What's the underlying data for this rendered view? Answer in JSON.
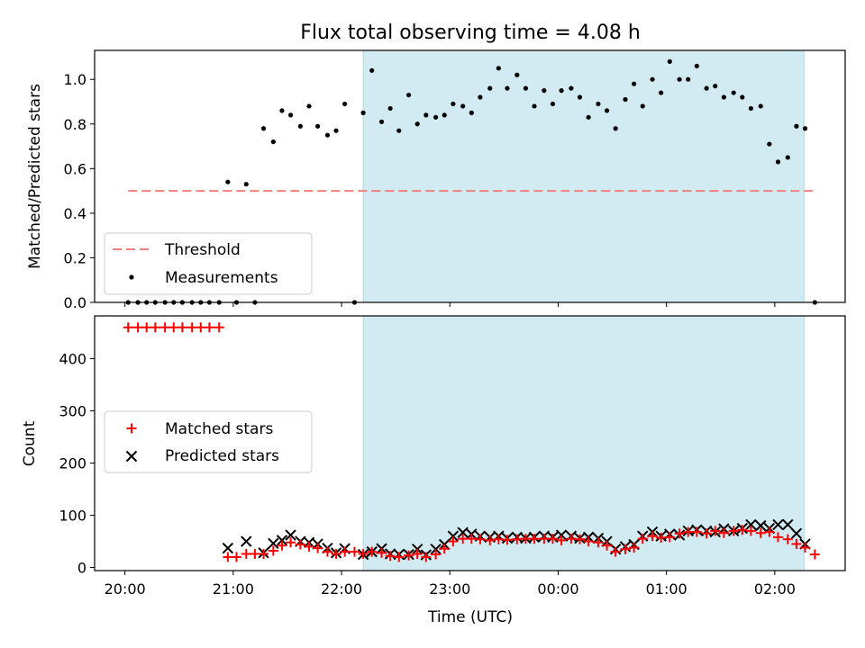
{
  "title": "Flux total observing time = 4.08 h",
  "colors": {
    "shade": "#add8e6",
    "threshold": "#f08080",
    "measurement": "#000000",
    "matched": "#ff0000",
    "predicted": "#000000"
  },
  "chart_data": [
    {
      "type": "scatter",
      "title": "Flux total observing time = 4.08 h",
      "ylabel": "Matched/Predicted stars",
      "xlim": [
        19.72,
        26.65
      ],
      "ylim": [
        0,
        1.13
      ],
      "yticks": [
        0.0,
        0.2,
        0.4,
        0.6,
        0.8,
        1.0
      ],
      "ytick_labels": [
        "0.0",
        "0.2",
        "0.4",
        "0.6",
        "0.8",
        "1.0"
      ],
      "shaded_span": [
        22.2,
        26.27
      ],
      "threshold": {
        "label": "Threshold",
        "value": 0.5,
        "x_range": [
          20.03,
          26.37
        ]
      },
      "legend": {
        "placement": "lower-left",
        "entries": [
          "Threshold",
          "Measurements"
        ]
      },
      "series": [
        {
          "name": "Measurements",
          "x": [
            20.03,
            20.12,
            20.2,
            20.28,
            20.37,
            20.45,
            20.53,
            20.62,
            20.7,
            20.78,
            20.87,
            20.95,
            21.03,
            21.12,
            21.2,
            21.28,
            21.37,
            21.45,
            21.53,
            21.62,
            21.7,
            21.78,
            21.87,
            21.95,
            22.03,
            22.12,
            22.2,
            22.28,
            22.37,
            22.45,
            22.53,
            22.62,
            22.7,
            22.78,
            22.87,
            22.95,
            23.03,
            23.12,
            23.2,
            23.28,
            23.37,
            23.45,
            23.53,
            23.62,
            23.7,
            23.78,
            23.87,
            23.95,
            24.03,
            24.12,
            24.2,
            24.28,
            24.37,
            24.45,
            24.53,
            24.62,
            24.7,
            24.78,
            24.87,
            24.95,
            25.03,
            25.12,
            25.2,
            25.28,
            25.37,
            25.45,
            25.53,
            25.62,
            25.7,
            25.78,
            25.87,
            25.95,
            26.03,
            26.12,
            26.2,
            26.28,
            26.37
          ],
          "y": [
            0,
            0,
            0,
            0,
            0,
            0,
            0,
            0,
            0,
            0,
            0,
            0.54,
            0,
            0.53,
            0,
            0.78,
            0.72,
            0.86,
            0.84,
            0.79,
            0.88,
            0.79,
            0.75,
            0.77,
            0.89,
            0,
            0.85,
            1.04,
            0.81,
            0.87,
            0.77,
            0.93,
            0.8,
            0.84,
            0.83,
            0.84,
            0.89,
            0.88,
            0.85,
            0.92,
            0.96,
            1.05,
            0.96,
            1.02,
            0.96,
            0.88,
            0.95,
            0.89,
            0.95,
            0.96,
            0.92,
            0.83,
            0.89,
            0.86,
            0.78,
            0.91,
            0.98,
            0.88,
            1.0,
            0.94,
            1.08,
            1.0,
            1.0,
            1.06,
            0.96,
            0.97,
            0.92,
            0.94,
            0.92,
            0.87,
            0.88,
            0.71,
            0.63,
            0.65,
            0.79,
            0.78,
            0
          ]
        }
      ]
    },
    {
      "type": "scatter",
      "ylabel": "Count",
      "xlabel": "Time (UTC)",
      "xlim": [
        19.72,
        26.65
      ],
      "ylim": [
        -6,
        482
      ],
      "yticks": [
        0,
        100,
        200,
        300,
        400
      ],
      "ytick_labels": [
        "0",
        "100",
        "200",
        "300",
        "400"
      ],
      "xticks": [
        20,
        21,
        22,
        23,
        24,
        25,
        26
      ],
      "xtick_labels": [
        "20:00",
        "21:00",
        "22:00",
        "23:00",
        "00:00",
        "01:00",
        "02:00"
      ],
      "shaded_span": [
        22.2,
        26.27
      ],
      "legend": {
        "placement": "center-left",
        "entries": [
          "Matched stars",
          "Predicted stars"
        ]
      },
      "series": [
        {
          "name": "Matched stars",
          "marker": "plus",
          "x": [
            20.03,
            20.12,
            20.2,
            20.28,
            20.37,
            20.45,
            20.53,
            20.62,
            20.7,
            20.78,
            20.87,
            20.95,
            21.03,
            21.12,
            21.2,
            21.28,
            21.37,
            21.45,
            21.53,
            21.62,
            21.7,
            21.78,
            21.87,
            21.95,
            22.03,
            22.12,
            22.2,
            22.28,
            22.37,
            22.45,
            22.53,
            22.62,
            22.7,
            22.78,
            22.87,
            22.95,
            23.03,
            23.12,
            23.2,
            23.28,
            23.37,
            23.45,
            23.53,
            23.62,
            23.7,
            23.78,
            23.87,
            23.95,
            24.03,
            24.12,
            24.2,
            24.28,
            24.37,
            24.45,
            24.53,
            24.62,
            24.7,
            24.78,
            24.87,
            24.95,
            25.03,
            25.12,
            25.2,
            25.28,
            25.37,
            25.45,
            25.53,
            25.62,
            25.7,
            25.78,
            25.87,
            25.95,
            26.03,
            26.12,
            26.2,
            26.28,
            26.37
          ],
          "y": [
            460,
            460,
            460,
            460,
            460,
            460,
            460,
            460,
            460,
            460,
            460,
            20,
            20,
            26,
            26,
            26,
            32,
            42,
            48,
            44,
            40,
            37,
            30,
            26,
            30,
            30,
            26,
            30,
            28,
            22,
            20,
            23,
            26,
            20,
            25,
            36,
            50,
            55,
            55,
            54,
            52,
            54,
            53,
            54,
            55,
            55,
            55,
            55,
            52,
            55,
            54,
            50,
            48,
            42,
            30,
            35,
            38,
            55,
            60,
            57,
            58,
            65,
            68,
            68,
            65,
            70,
            66,
            70,
            72,
            70,
            66,
            68,
            58,
            54,
            45,
            38,
            25
          ]
        },
        {
          "name": "Predicted stars",
          "marker": "x",
          "x": [
            20.95,
            21.12,
            21.28,
            21.37,
            21.45,
            21.53,
            21.62,
            21.7,
            21.78,
            21.87,
            21.95,
            22.03,
            22.2,
            22.28,
            22.37,
            22.45,
            22.53,
            22.62,
            22.7,
            22.78,
            22.87,
            22.95,
            23.03,
            23.12,
            23.2,
            23.28,
            23.37,
            23.45,
            23.53,
            23.62,
            23.7,
            23.78,
            23.87,
            23.95,
            24.03,
            24.12,
            24.2,
            24.28,
            24.37,
            24.45,
            24.53,
            24.62,
            24.7,
            24.78,
            24.87,
            24.95,
            25.03,
            25.12,
            25.2,
            25.28,
            25.37,
            25.45,
            25.53,
            25.62,
            25.7,
            25.78,
            25.87,
            25.95,
            26.03,
            26.12,
            26.2,
            26.28
          ],
          "y": [
            37,
            50,
            28,
            46,
            52,
            62,
            50,
            48,
            45,
            37,
            28,
            36,
            25,
            30,
            36,
            26,
            25,
            25,
            35,
            24,
            35,
            44,
            60,
            67,
            64,
            60,
            58,
            60,
            56,
            58,
            56,
            58,
            60,
            58,
            62,
            60,
            56,
            58,
            56,
            50,
            35,
            40,
            44,
            60,
            68,
            60,
            64,
            62,
            70,
            72,
            70,
            68,
            74,
            70,
            75,
            82,
            80,
            75,
            82,
            82,
            65,
            45
          ]
        }
      ]
    }
  ]
}
